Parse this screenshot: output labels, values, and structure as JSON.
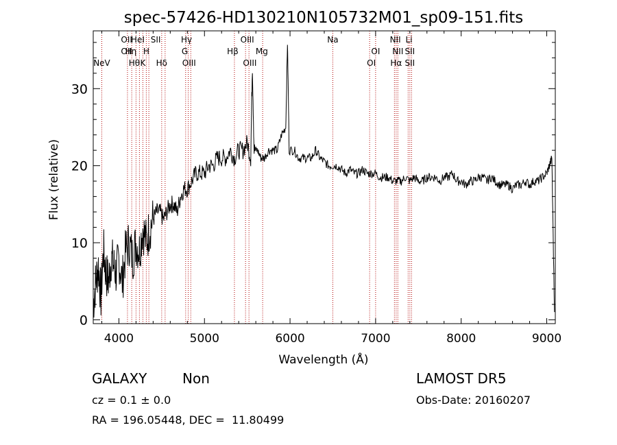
{
  "chart_data": {
    "type": "line",
    "title": "spec-57426-HD130210N105732M01_sp09-151.fits",
    "xlabel": "Wavelength (Å)",
    "ylabel": "Flux (relative)",
    "xlim": [
      3700,
      9100
    ],
    "ylim": [
      -0.5,
      37.5
    ],
    "xticks": [
      "4000",
      "5000",
      "6000",
      "7000",
      "8000",
      "9000"
    ],
    "yticks": [
      "0",
      "10",
      "20",
      "30"
    ],
    "xtick_values": [
      4000,
      5000,
      6000,
      7000,
      8000,
      9000
    ],
    "ytick_values": [
      0,
      10,
      20,
      30
    ],
    "grid": false,
    "series": [
      {
        "x": [
          3700,
          3730,
          3760,
          3790,
          3820,
          3850,
          3880,
          3910,
          3940,
          3970,
          4000,
          4040,
          4080,
          4120,
          4160,
          4200,
          4240,
          4280,
          4320,
          4360,
          4400,
          4440,
          4480,
          4520,
          4560,
          4600,
          4640,
          4680,
          4720,
          4760,
          4800,
          4850,
          4900,
          4950,
          5000,
          5050,
          5100,
          5150,
          5200,
          5250,
          5300,
          5350,
          5400,
          5450,
          5500,
          5540,
          5560,
          5580,
          5620,
          5660,
          5700,
          5750,
          5800,
          5850,
          5900,
          5950,
          5970,
          5990,
          6050,
          6100,
          6150,
          6200,
          6250,
          6300,
          6350,
          6400,
          6450,
          6500,
          6550,
          6600,
          6650,
          6700,
          6750,
          6800,
          6850,
          6900,
          6950,
          7000,
          7050,
          7100,
          7150,
          7200,
          7250,
          7300,
          7350,
          7400,
          7450,
          7500,
          7550,
          7600,
          7650,
          7700,
          7750,
          7800,
          7850,
          7900,
          7950,
          8000,
          8050,
          8100,
          8150,
          8200,
          8250,
          8300,
          8350,
          8400,
          8450,
          8500,
          8550,
          8600,
          8650,
          8700,
          8750,
          8800,
          8850,
          8900,
          8950,
          9000,
          9030,
          9060,
          9090
        ],
        "y": [
          2,
          5,
          7,
          3,
          9,
          6,
          5,
          8,
          7,
          6,
          8,
          5,
          9,
          10,
          8,
          10,
          9,
          12,
          10,
          12,
          13,
          14,
          14,
          13,
          14,
          15,
          15,
          14,
          16,
          17,
          17,
          18,
          19,
          19,
          19,
          20,
          20,
          21,
          21,
          21,
          22,
          21,
          22,
          22,
          23,
          21,
          33,
          22,
          22,
          21,
          21,
          22,
          22,
          22,
          24,
          25,
          36,
          22,
          22,
          21,
          21,
          21,
          21,
          22,
          21,
          20.5,
          20,
          20,
          20,
          19.5,
          19,
          19.5,
          19,
          19,
          19.5,
          19,
          19,
          19,
          18.5,
          18.5,
          18.5,
          18,
          18,
          18,
          18.5,
          18,
          18.5,
          18,
          18,
          18.5,
          18.5,
          18.5,
          18,
          18.5,
          18.5,
          19,
          18,
          18,
          17.5,
          18,
          18,
          18.5,
          18.5,
          18,
          18.5,
          18,
          17.5,
          17.5,
          17.5,
          17,
          17.5,
          17.5,
          18,
          17.5,
          18,
          18,
          18.5,
          19,
          20,
          21,
          1
        ]
      }
    ],
    "line_markers": [
      {
        "label": "NeV",
        "x": 3800,
        "row": 3
      },
      {
        "label": "OII",
        "x": 4090,
        "row": 1
      },
      {
        "label": "OII",
        "x": 4090,
        "row": 2
      },
      {
        "label": "Hη",
        "x": 4140,
        "row": 2
      },
      {
        "label": "Hθ",
        "x": 4180,
        "row": 3
      },
      {
        "label": "HeI",
        "x": 4220,
        "row": 1
      },
      {
        "label": "H",
        "x": 4320,
        "row": 2
      },
      {
        "label": "K",
        "x": 4280,
        "row": 3
      },
      {
        "label": "SII",
        "x": 4430,
        "row": 1
      },
      {
        "label": "Hδ",
        "x": 4500,
        "row": 3
      },
      {
        "label": "Hγ",
        "x": 4790,
        "row": 1
      },
      {
        "label": "G",
        "x": 4770,
        "row": 2
      },
      {
        "label": "OIII",
        "x": 4820,
        "row": 3
      },
      {
        "label": "Hβ",
        "x": 5330,
        "row": 2
      },
      {
        "label": "OIII",
        "x": 5500,
        "row": 1
      },
      {
        "label": "OIII",
        "x": 5530,
        "row": 3
      },
      {
        "label": "Mg",
        "x": 5670,
        "row": 2
      },
      {
        "label": "Na",
        "x": 6500,
        "row": 1
      },
      {
        "label": "OI",
        "x": 7000,
        "row": 2
      },
      {
        "label": "OI",
        "x": 6950,
        "row": 3
      },
      {
        "label": "NII",
        "x": 7230,
        "row": 1
      },
      {
        "label": "NII",
        "x": 7260,
        "row": 2
      },
      {
        "label": "Hα",
        "x": 7240,
        "row": 3
      },
      {
        "label": "Li",
        "x": 7390,
        "row": 1
      },
      {
        "label": "SII",
        "x": 7400,
        "row": 2
      },
      {
        "label": "SII",
        "x": 7400,
        "row": 3
      }
    ],
    "marker_lines_x": [
      3800,
      4100,
      4150,
      4200,
      4240,
      4280,
      4320,
      4350,
      4500,
      4540,
      4780,
      4810,
      4840,
      5350,
      5480,
      5520,
      5680,
      6500,
      6930,
      7000,
      7220,
      7240,
      7260,
      7380,
      7400,
      7420
    ],
    "colors": {
      "spectrum": "#000000",
      "markers": "#b00000",
      "axes": "#000000"
    }
  },
  "info": {
    "object_class": "GALAXY",
    "subclass": "Non",
    "survey": "LAMOST DR5",
    "cz": "cz = 0.1 ± 0.0",
    "obs_date": "Obs-Date: 20160207",
    "coords": "RA = 196.05448, DEC =  11.80499"
  }
}
